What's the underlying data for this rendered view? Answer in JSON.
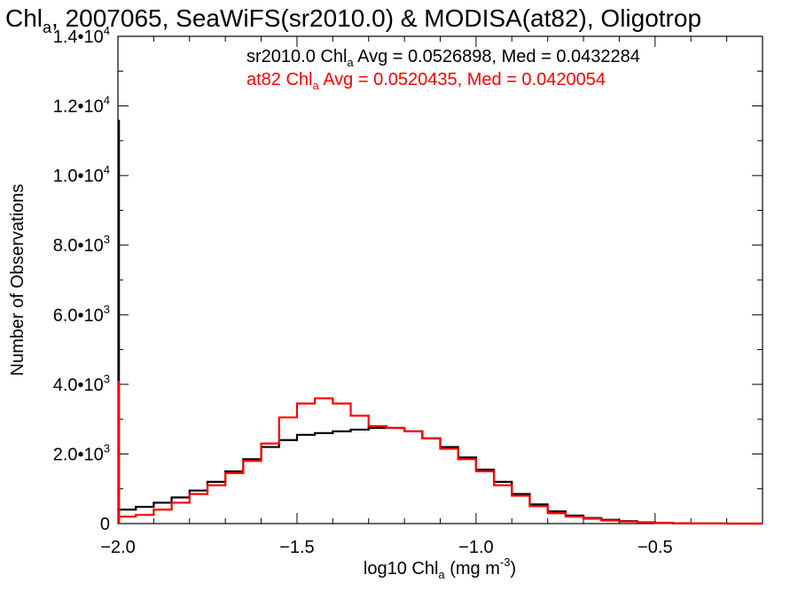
{
  "chart_data": {
    "type": "histogram",
    "title_main": "Chl",
    "title_sub": "a",
    "title_rest": ", 2007065, SeaWiFS(sr2010.0) & MODISA(at82), Oligotrop",
    "xlabel_main": "log10 Chl",
    "xlabel_sub": "a",
    "xlabel_rest": " (mg m",
    "xlabel_sup": "-3",
    "xlabel_end": ")",
    "ylabel": "Number of Observations",
    "xlim": [
      -2.0,
      -0.2
    ],
    "ylim": [
      0,
      14000
    ],
    "x_ticks": [
      {
        "value": -2.0,
        "label": "-2.0"
      },
      {
        "value": -1.5,
        "label": "-1.5"
      },
      {
        "value": -1.0,
        "label": "-1.0"
      },
      {
        "value": -0.5,
        "label": "-0.5"
      }
    ],
    "y_ticks": [
      {
        "value": 0,
        "mant": "0",
        "exp": ""
      },
      {
        "value": 2000,
        "mant": "2.0•10",
        "exp": "3"
      },
      {
        "value": 4000,
        "mant": "4.0•10",
        "exp": "3"
      },
      {
        "value": 6000,
        "mant": "6.0•10",
        "exp": "3"
      },
      {
        "value": 8000,
        "mant": "8.0•10",
        "exp": "3"
      },
      {
        "value": 10000,
        "mant": "1.0•10",
        "exp": "4"
      },
      {
        "value": 12000,
        "mant": "1.2•10",
        "exp": "4"
      },
      {
        "value": 14000,
        "mant": "1.4•10",
        "exp": "4"
      }
    ],
    "annotations": [
      {
        "pre": "sr2010.0 Chl",
        "sub": "a",
        "post": " Avg = 0.0526898, Med = 0.0432284",
        "color": "#000000"
      },
      {
        "pre": "at82 Chl",
        "sub": "a",
        "post": " Avg = 0.0520435, Med = 0.0420054",
        "color": "#ff0000"
      }
    ],
    "series": [
      {
        "color": "#000000",
        "spike": {
          "x": -2.0,
          "y": 11600
        },
        "x": [
          -2.0,
          -1.95,
          -1.9,
          -1.85,
          -1.8,
          -1.75,
          -1.7,
          -1.65,
          -1.6,
          -1.55,
          -1.5,
          -1.45,
          -1.4,
          -1.35,
          -1.3,
          -1.25,
          -1.2,
          -1.15,
          -1.1,
          -1.05,
          -1.0,
          -0.95,
          -0.9,
          -0.85,
          -0.8,
          -0.75,
          -0.7,
          -0.65,
          -0.6,
          -0.55,
          -0.5,
          -0.45,
          -0.4,
          -0.3,
          -0.2
        ],
        "y": [
          400,
          480,
          600,
          750,
          950,
          1200,
          1500,
          1850,
          2200,
          2400,
          2550,
          2600,
          2650,
          2700,
          2750,
          2750,
          2650,
          2450,
          2200,
          1900,
          1550,
          1200,
          850,
          550,
          350,
          230,
          160,
          110,
          70,
          40,
          20,
          10,
          5,
          0,
          0
        ]
      },
      {
        "color": "#ff0000",
        "spike": {
          "x": -2.0,
          "y": 4100
        },
        "x": [
          -2.0,
          -1.95,
          -1.9,
          -1.85,
          -1.8,
          -1.75,
          -1.7,
          -1.65,
          -1.6,
          -1.55,
          -1.5,
          -1.45,
          -1.4,
          -1.35,
          -1.3,
          -1.25,
          -1.2,
          -1.15,
          -1.1,
          -1.05,
          -1.0,
          -0.95,
          -0.9,
          -0.85,
          -0.8,
          -0.75,
          -0.7,
          -0.65,
          -0.6,
          -0.55,
          -0.5,
          -0.45,
          -0.4,
          -0.3,
          -0.2
        ],
        "y": [
          200,
          250,
          400,
          600,
          850,
          1100,
          1450,
          1800,
          2300,
          3050,
          3450,
          3600,
          3450,
          3100,
          2800,
          2750,
          2650,
          2450,
          2150,
          1850,
          1500,
          1100,
          800,
          500,
          300,
          200,
          140,
          90,
          60,
          35,
          15,
          8,
          4,
          0,
          0
        ]
      }
    ]
  }
}
